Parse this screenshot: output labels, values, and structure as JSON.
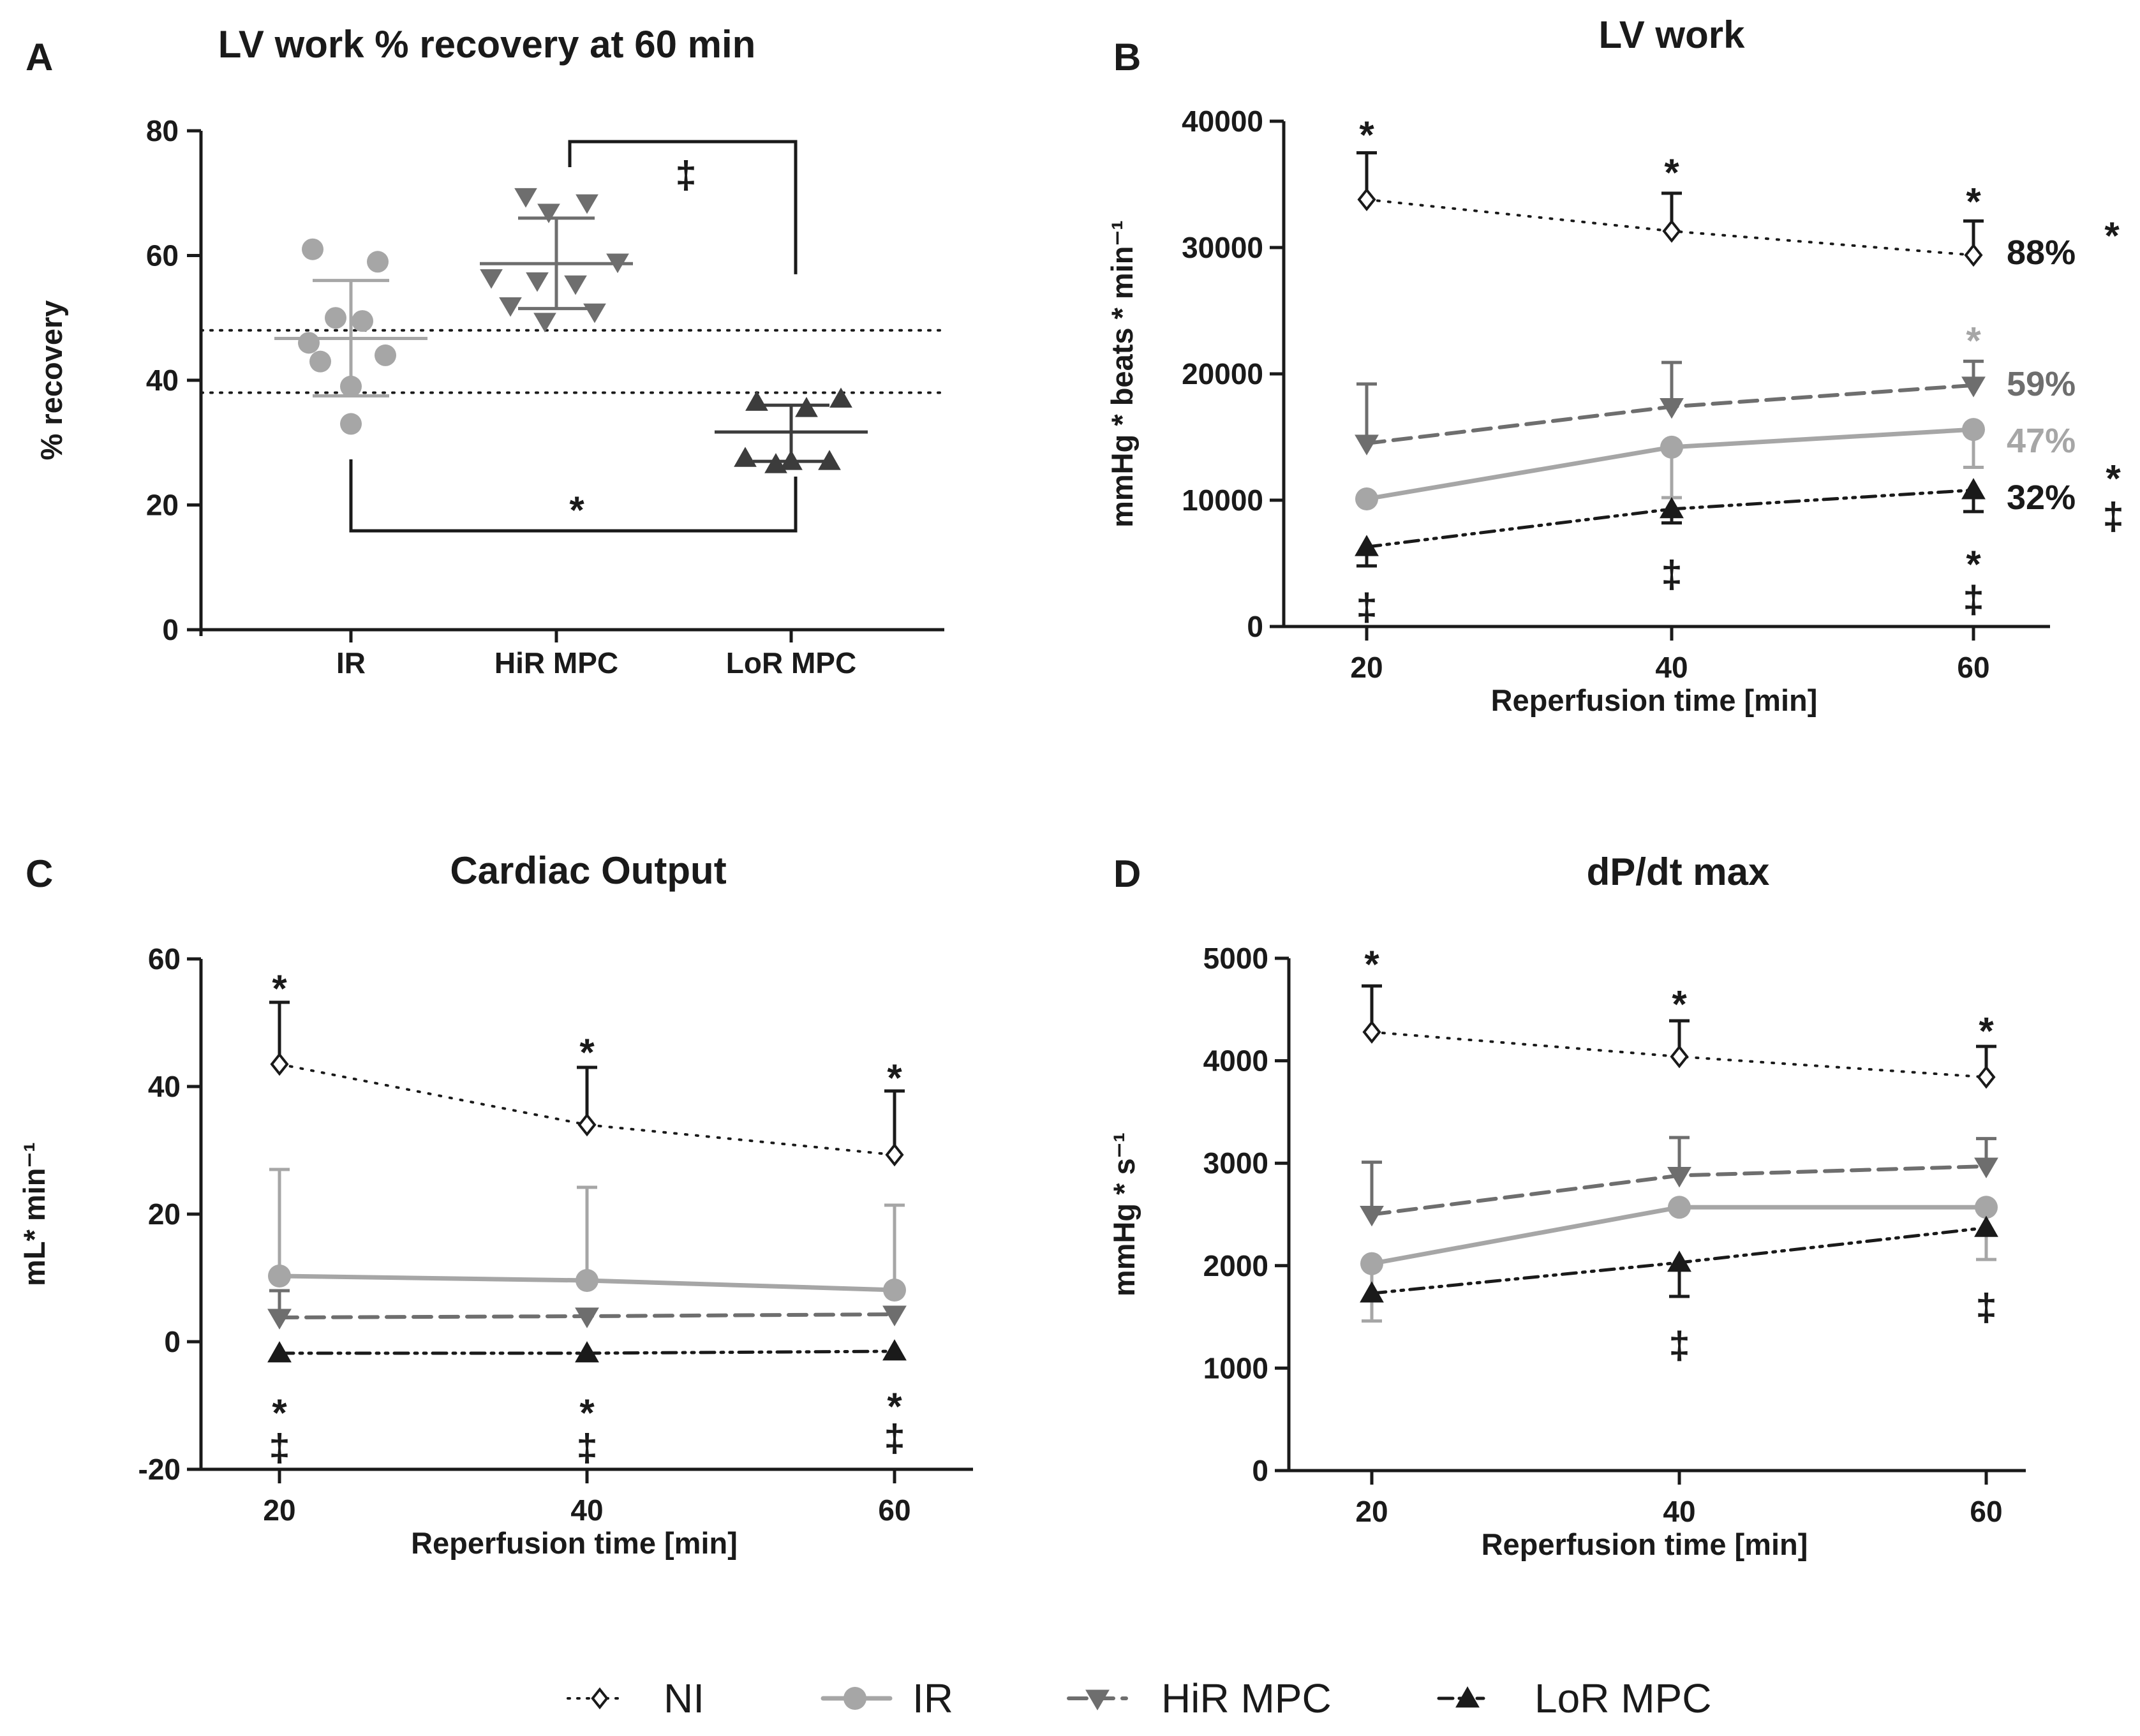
{
  "colors": {
    "NI": "#1a1a1a",
    "IR": "#a6a6a6",
    "HiR": "#6e6e6e",
    "LoR": "#1a1a1a",
    "LoR_dots": "#3c3c3c",
    "axis": "#1a1a1a"
  },
  "legend": {
    "items": [
      {
        "key": "NI",
        "label": "NI",
        "icon": "diamond-open"
      },
      {
        "key": "IR",
        "label": "IR",
        "icon": "circle"
      },
      {
        "key": "HiR",
        "label": "HiR MPC",
        "icon": "triangle-down"
      },
      {
        "key": "LoR",
        "label": "LoR MPC",
        "icon": "triangle-up"
      }
    ]
  },
  "chart_data": [
    {
      "panel": "A",
      "type": "scatter",
      "title": "LV work %  recovery at 60 min",
      "ylabel": "% recovery",
      "xlabel": "",
      "categories": [
        "IR",
        "HiR MPC",
        "LoR MPC"
      ],
      "ylim": [
        0,
        80
      ],
      "yticks": [
        "0",
        "20",
        "40",
        "60",
        "80"
      ],
      "reference_lines": [
        48,
        38
      ],
      "groups": [
        {
          "name": "IR",
          "color_key": "IR",
          "marker": "circle",
          "mean": 46.7,
          "sd_high": 56,
          "sd_low": 37.5,
          "points": [
            [
              -0.1,
              61
            ],
            [
              0.07,
              59
            ],
            [
              -0.04,
              50
            ],
            [
              0.03,
              49.5
            ],
            [
              -0.11,
              46
            ],
            [
              0.09,
              44
            ],
            [
              -0.08,
              43
            ],
            [
              0.0,
              39
            ],
            [
              0.0,
              33
            ]
          ]
        },
        {
          "name": "HiR MPC",
          "color_key": "HiR",
          "marker": "triangle-down",
          "mean": 58.7,
          "sd_high": 66,
          "sd_low": 51.5,
          "points": [
            [
              -0.08,
              69.5
            ],
            [
              0.08,
              68.5
            ],
            [
              -0.02,
              67
            ],
            [
              0.16,
              59
            ],
            [
              -0.17,
              56.5
            ],
            [
              -0.05,
              56
            ],
            [
              0.05,
              55.5
            ],
            [
              -0.12,
              52
            ],
            [
              0.1,
              51
            ],
            [
              -0.03,
              49.5
            ]
          ]
        },
        {
          "name": "LoR MPC",
          "color_key": "LoR_dots",
          "marker": "triangle-up",
          "mean": 31.7,
          "sd_high": 36,
          "sd_low": 27,
          "points": [
            [
              -0.09,
              36.5
            ],
            [
              0.13,
              37
            ],
            [
              0.04,
              35.5
            ],
            [
              -0.12,
              27.5
            ],
            [
              0.0,
              27
            ],
            [
              -0.04,
              26.5
            ],
            [
              0.1,
              27
            ]
          ]
        }
      ],
      "annotations": [
        {
          "label": "‡",
          "between": [
            "HiR MPC",
            "LoR MPC"
          ]
        },
        {
          "label": "*",
          "between": [
            "IR",
            "LoR MPC"
          ]
        }
      ]
    },
    {
      "panel": "B",
      "type": "line",
      "title": "LV work",
      "xlabel": "Reperfusion time [min]",
      "ylabel": "mmHg * beats * min⁻¹",
      "x": [
        20,
        40,
        60
      ],
      "xticks": [
        "20",
        "40",
        "60"
      ],
      "ylim": [
        0,
        40000
      ],
      "yticks": [
        "0",
        "10000",
        "20000",
        "30000",
        "40000"
      ],
      "series": [
        {
          "name": "NI",
          "values": [
            33800,
            31300,
            29400
          ],
          "err": [
            3700,
            3000,
            2700
          ],
          "err_dir": "up"
        },
        {
          "name": "IR",
          "values": [
            10100,
            14200,
            15600
          ],
          "err": [
            0,
            4000,
            3000
          ],
          "err_dir": "down"
        },
        {
          "name": "HiR MPC",
          "values": [
            14500,
            17400,
            19100
          ],
          "err": [
            4700,
            3500,
            1900
          ],
          "err_dir": "up"
        },
        {
          "name": "LoR MPC",
          "values": [
            6300,
            9300,
            10800
          ],
          "err": [
            1500,
            1100,
            1700
          ],
          "err_dir": "down"
        }
      ],
      "end_labels": [
        {
          "series": "NI",
          "text": "88%",
          "mark": "*"
        },
        {
          "series": "HiR MPC",
          "text": "59%",
          "mark": ""
        },
        {
          "series": "IR",
          "text": "47%",
          "mark": ""
        },
        {
          "series": "LoR MPC",
          "text": "32%",
          "mark": "*‡"
        }
      ],
      "point_marks": [
        {
          "x": 20,
          "y": 39000,
          "text": "*",
          "color_key": "NI"
        },
        {
          "x": 40,
          "y": 36000,
          "text": "*",
          "color_key": "NI"
        },
        {
          "x": 60,
          "y": 33700,
          "text": "*",
          "color_key": "NI"
        },
        {
          "x": 60,
          "y": 22700,
          "text": "*",
          "color_key": "IR"
        },
        {
          "x": 20,
          "y": 1600,
          "text": "‡",
          "color_key": "NI"
        },
        {
          "x": 40,
          "y": 4200,
          "text": "‡",
          "color_key": "NI"
        },
        {
          "x": 60,
          "y": 5000,
          "text": "*",
          "color_key": "NI"
        },
        {
          "x": 60,
          "y": 2200,
          "text": "‡",
          "color_key": "NI"
        }
      ]
    },
    {
      "panel": "C",
      "type": "line",
      "title": "Cardiac Output",
      "xlabel": "Reperfusion time [min]",
      "ylabel": "mL* min⁻¹",
      "x": [
        20,
        40,
        60
      ],
      "xticks": [
        "20",
        "40",
        "60"
      ],
      "ylim": [
        -20,
        60
      ],
      "yticks": [
        "-20",
        "0",
        "20",
        "40",
        "60"
      ],
      "series": [
        {
          "name": "NI",
          "values": [
            43.5,
            34,
            29.3
          ],
          "err": [
            9.7,
            9,
            10
          ],
          "err_dir": "up"
        },
        {
          "name": "IR",
          "values": [
            10.3,
            9.6,
            8.1
          ],
          "err": [
            16.7,
            14.6,
            13.3
          ],
          "err_dir": "up"
        },
        {
          "name": "HiR MPC",
          "values": [
            3.8,
            4,
            4.3
          ],
          "err": [
            4.2,
            0,
            0
          ],
          "err_dir": "up"
        },
        {
          "name": "LoR MPC",
          "values": [
            -1.8,
            -1.8,
            -1.5
          ],
          "err": [
            0,
            0,
            0
          ],
          "err_dir": "up"
        }
      ],
      "point_marks": [
        {
          "x": 20,
          "y": 55.5,
          "text": "*"
        },
        {
          "x": 40,
          "y": 45.5,
          "text": "*"
        },
        {
          "x": 60,
          "y": 41.5,
          "text": "*"
        },
        {
          "x": 20,
          "y": -11,
          "text": "*"
        },
        {
          "x": 40,
          "y": -11,
          "text": "*"
        },
        {
          "x": 60,
          "y": -10,
          "text": "*"
        },
        {
          "x": 20,
          "y": -16.5,
          "text": "‡"
        },
        {
          "x": 40,
          "y": -16.5,
          "text": "‡"
        },
        {
          "x": 60,
          "y": -15,
          "text": "‡"
        }
      ]
    },
    {
      "panel": "D",
      "type": "line",
      "title": "dP/dt max",
      "xlabel": "Reperfusion time [min]",
      "ylabel": "mmHg * s⁻¹",
      "x": [
        20,
        40,
        60
      ],
      "xticks": [
        "20",
        "40",
        "60"
      ],
      "ylim": [
        0,
        5000
      ],
      "yticks": [
        "0",
        "1000",
        "2000",
        "3000",
        "4000",
        "5000"
      ],
      "series": [
        {
          "name": "NI",
          "values": [
            4280,
            4040,
            3840
          ],
          "err": [
            450,
            350,
            300
          ],
          "err_dir": "up"
        },
        {
          "name": "IR",
          "values": [
            2020,
            2570,
            2570
          ],
          "err": [
            560,
            0,
            510
          ],
          "err_dir": "down"
        },
        {
          "name": "HiR MPC",
          "values": [
            2500,
            2880,
            2970
          ],
          "err": [
            510,
            370,
            270
          ],
          "err_dir": "up"
        },
        {
          "name": "LoR MPC",
          "values": [
            1730,
            2030,
            2370
          ],
          "err": [
            0,
            330,
            0
          ],
          "err_dir": "down"
        }
      ],
      "point_marks": [
        {
          "x": 20,
          "y": 4950,
          "text": "*"
        },
        {
          "x": 40,
          "y": 4560,
          "text": "*"
        },
        {
          "x": 60,
          "y": 4300,
          "text": "*"
        },
        {
          "x": 40,
          "y": 1230,
          "text": "‡"
        },
        {
          "x": 60,
          "y": 1600,
          "text": "‡"
        }
      ]
    }
  ]
}
